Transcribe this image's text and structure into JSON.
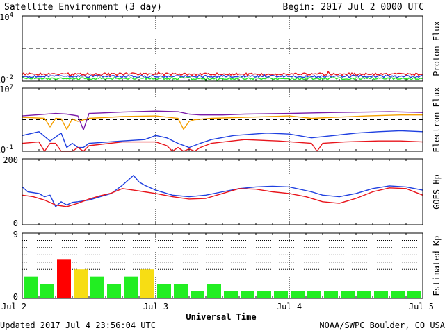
{
  "header": {
    "title": "Satellite Environment (3 day)",
    "begin": "Begin:  2017 Jul 2 0000 UTC"
  },
  "footer": {
    "updated": "Updated 2017 Jul  4 23:56:04 UTC",
    "credit": "NOAA/SWPC Boulder, CO USA"
  },
  "x_axis": {
    "label": "Universal Time",
    "ticks": [
      "Jul 2",
      "Jul 3",
      "Jul 4",
      "Jul 5"
    ]
  },
  "colors": {
    "red": "#e8141b",
    "blue": "#1e3fe0",
    "green": "#26e626",
    "orange": "#f5a000",
    "purple": "#7a1aa8",
    "kp_green": "#22ee22",
    "kp_yellow": "#f7dd14",
    "kp_red": "#ff0000"
  },
  "chart_data": [
    {
      "type": "line",
      "ylabel": "Proton Flux",
      "y_scale": "log",
      "ytick_labels": [
        "10^4",
        "10^-2"
      ],
      "ylim": [
        0.01,
        10000
      ],
      "threshold": 10,
      "x_unit": "hours since 2017 Jul 2 0000 UTC",
      "series": [
        {
          "color": "red",
          "level": 0.045,
          "noise": 0.12
        },
        {
          "color": "blue",
          "level": 0.028,
          "noise": 0.1
        },
        {
          "color": "green",
          "level": 0.017,
          "noise": 0.1
        }
      ]
    },
    {
      "type": "line",
      "ylabel": "Electron Flux",
      "y_scale": "log",
      "ytick_labels": [
        "10^7",
        "10^-1"
      ],
      "ylim": [
        0.1,
        10000000
      ],
      "threshold": 1000,
      "series": [
        {
          "color": "purple",
          "x": [
            0,
            6,
            8,
            10,
            11,
            12,
            14,
            18,
            24,
            28,
            30,
            32,
            36,
            40,
            48,
            56,
            62,
            66,
            72
          ],
          "y": [
            3000,
            6000,
            5000,
            3000,
            50,
            6000,
            7000,
            9000,
            12000,
            10000,
            5000,
            4000,
            4000,
            5000,
            6000,
            8000,
            9000,
            10000,
            8000
          ]
        },
        {
          "color": "orange",
          "x": [
            0,
            4,
            5,
            6,
            7,
            8,
            9,
            10,
            12,
            18,
            24,
            28,
            29,
            30,
            31,
            34,
            40,
            48,
            52,
            56,
            62,
            68,
            72
          ],
          "y": [
            2000,
            1500,
            120,
            1500,
            1300,
            60,
            1300,
            600,
            1500,
            2500,
            3000,
            1500,
            60,
            600,
            1000,
            1500,
            2000,
            3000,
            1500,
            2000,
            3000,
            4000,
            4000
          ]
        },
        {
          "color": "blue",
          "x": [
            0,
            3,
            5,
            7,
            8,
            9,
            10,
            11,
            12,
            18,
            22,
            24,
            26,
            28,
            30,
            32,
            34,
            38,
            44,
            48,
            52,
            56,
            60,
            64,
            68,
            72
          ],
          "y": [
            10,
            30,
            2,
            20,
            0.3,
            1,
            0.3,
            0.3,
            1,
            2,
            3,
            10,
            5,
            1,
            0.3,
            1,
            3,
            10,
            20,
            15,
            5,
            10,
            20,
            30,
            40,
            30
          ]
        },
        {
          "color": "red",
          "x": [
            0,
            3,
            4,
            5,
            6,
            7,
            8,
            9,
            10,
            11,
            12,
            18,
            24,
            26,
            27,
            28,
            29,
            30,
            31,
            32,
            34,
            40,
            46,
            52,
            53,
            54,
            58,
            64,
            68,
            72
          ],
          "y": [
            1,
            1.5,
            0.1,
            1,
            1,
            0.1,
            0.1,
            0.1,
            0.3,
            0.1,
            0.5,
            1.5,
            1.5,
            0.5,
            0.1,
            0.3,
            0.1,
            0.2,
            0.1,
            0.3,
            1,
            3,
            2,
            1,
            0.1,
            1,
            1.5,
            2,
            2,
            1.5
          ]
        }
      ]
    },
    {
      "type": "line",
      "ylabel": "GOES Hp",
      "ytick_labels": [
        "200",
        "0"
      ],
      "ylim": [
        0,
        200
      ],
      "series": [
        {
          "color": "blue",
          "x": [
            0,
            1,
            3,
            4,
            5,
            6,
            7,
            8,
            9,
            10,
            12,
            14,
            16,
            18,
            19,
            20,
            21,
            22,
            24,
            27,
            30,
            33,
            36,
            39,
            42,
            45,
            48,
            52,
            54,
            57,
            60,
            63,
            66,
            69,
            72
          ],
          "y": [
            115,
            100,
            95,
            85,
            90,
            55,
            70,
            60,
            68,
            70,
            75,
            85,
            95,
            120,
            135,
            150,
            130,
            120,
            105,
            90,
            85,
            90,
            100,
            110,
            115,
            117,
            115,
            100,
            90,
            85,
            95,
            110,
            118,
            115,
            105
          ]
        },
        {
          "color": "red",
          "x": [
            0,
            2,
            4,
            6,
            8,
            10,
            12,
            14,
            16,
            18,
            20,
            22,
            24,
            27,
            30,
            33,
            36,
            39,
            42,
            45,
            48,
            51,
            54,
            57,
            60,
            63,
            66,
            69,
            72
          ],
          "y": [
            90,
            85,
            75,
            60,
            55,
            65,
            78,
            88,
            96,
            110,
            105,
            100,
            95,
            85,
            78,
            80,
            95,
            110,
            108,
            100,
            95,
            85,
            70,
            65,
            80,
            100,
            112,
            110,
            90
          ]
        }
      ]
    },
    {
      "type": "bar",
      "ylabel": "Estimated Kp",
      "ytick_labels": [
        "9",
        "0"
      ],
      "ylim": [
        0,
        9
      ],
      "gridlines": [
        4,
        5,
        6,
        7,
        8,
        9
      ],
      "bar_width_hours": 3,
      "values": [
        3,
        2,
        5.33,
        4,
        3,
        2,
        3,
        4,
        2,
        2,
        1,
        2,
        1,
        1,
        1,
        1,
        1,
        1,
        1,
        1,
        1,
        1,
        1,
        1
      ]
    }
  ]
}
